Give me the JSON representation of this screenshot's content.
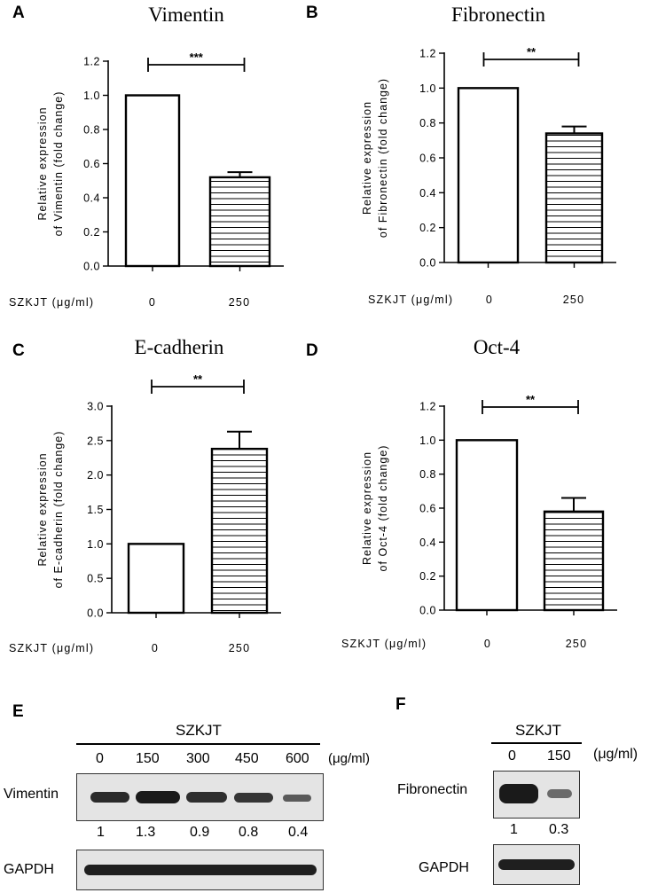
{
  "chart_data": [
    {
      "panel": "A",
      "type": "bar",
      "title": "Vimentin",
      "ylabel_line1": "Relative expression",
      "ylabel_line2": "of  Vimentin (fold change)",
      "xlabel": "SZKJT (μg/ml)",
      "categories": [
        "0",
        "250"
      ],
      "values": [
        1.0,
        0.52
      ],
      "errors": [
        0,
        0.03
      ],
      "ylim": [
        0,
        1.2
      ],
      "yticks": [
        "0.0",
        "0.2",
        "0.4",
        "0.6",
        "0.8",
        "1.0",
        "1.2"
      ],
      "significance": "***"
    },
    {
      "panel": "B",
      "type": "bar",
      "title": "Fibronectin",
      "ylabel_line1": "Relative expression",
      "ylabel_line2": "of  Fibronectin (fold change)",
      "xlabel": "SZKJT (μg/ml)",
      "categories": [
        "0",
        "250"
      ],
      "values": [
        1.0,
        0.74
      ],
      "errors": [
        0,
        0.04
      ],
      "ylim": [
        0,
        1.2
      ],
      "yticks": [
        "0.0",
        "0.2",
        "0.4",
        "0.6",
        "0.8",
        "1.0",
        "1.2"
      ],
      "significance": "**"
    },
    {
      "panel": "C",
      "type": "bar",
      "title": "E-cadherin",
      "ylabel_line1": "Relative expression",
      "ylabel_line2": "of  E-cadherin (fold change)",
      "xlabel": "SZKJT (μg/ml)",
      "categories": [
        "0",
        "250"
      ],
      "values": [
        1.0,
        2.38
      ],
      "errors": [
        0,
        0.25
      ],
      "ylim": [
        0,
        3.0
      ],
      "yticks": [
        "0.0",
        "0.5",
        "1.0",
        "1.5",
        "2.0",
        "2.5",
        "3.0"
      ],
      "significance": "**"
    },
    {
      "panel": "D",
      "type": "bar",
      "title": "Oct-4",
      "ylabel_line1": "Relative expression",
      "ylabel_line2": "of  Oct-4 (fold change)",
      "xlabel": "SZKJT (μg/ml)",
      "categories": [
        "0",
        "250"
      ],
      "values": [
        1.0,
        0.58
      ],
      "errors": [
        0,
        0.08
      ],
      "ylim": [
        0,
        1.2
      ],
      "yticks": [
        "0.0",
        "0.2",
        "0.4",
        "0.6",
        "0.8",
        "1.0",
        "1.2"
      ],
      "significance": "**"
    }
  ],
  "blot_E": {
    "letter": "E",
    "treatment": "SZKJT",
    "doses": [
      "0",
      "150",
      "300",
      "450",
      "600"
    ],
    "unit": "(μg/ml)",
    "row1_label": "Vimentin",
    "quant": [
      "1",
      "1.3",
      "0.9",
      "0.8",
      "0.4"
    ],
    "row2_label": "GAPDH"
  },
  "blot_F": {
    "letter": "F",
    "treatment": "SZKJT",
    "doses": [
      "0",
      "150"
    ],
    "unit": "(μg/ml)",
    "row1_label": "Fibronectin",
    "quant": [
      "1",
      "0.3"
    ],
    "row2_label": "GAPDH"
  }
}
